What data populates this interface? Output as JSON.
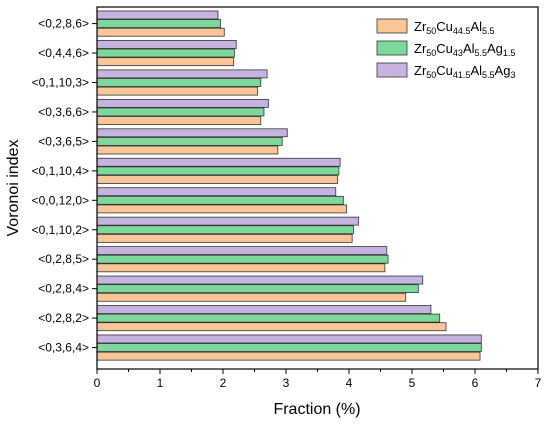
{
  "chart_data": {
    "type": "bar",
    "orientation": "horizontal",
    "xlabel": "Fraction (%)",
    "ylabel": "Voronoi index",
    "xlim": [
      0,
      7
    ],
    "xticks": [
      "0",
      "1",
      "2",
      "3",
      "4",
      "5",
      "6",
      "7"
    ],
    "grid": false,
    "legend_position": "top-right",
    "categories": [
      "<0,2,8,6>",
      "<0,4,4,6>",
      "<0,1,10,3>",
      "<0,3,6,6>",
      "<0,3,6,5>",
      "<0,1,10,4>",
      "<0,0,12,0>",
      "<0,1,10,2>",
      "<0,2,8,5>",
      "<0,2,8,4>",
      "<0,2,8,2>",
      "<0,3,6,4>"
    ],
    "series": [
      {
        "name": "Zr50Cu44.5Al5.5",
        "legend_parts": [
          [
            "Zr",
            false
          ],
          [
            "50",
            true
          ],
          [
            "Cu",
            false
          ],
          [
            "44.5",
            true
          ],
          [
            "Al",
            false
          ],
          [
            "5.5",
            true
          ]
        ],
        "color": "#F8C697",
        "values": [
          2.02,
          2.17,
          2.55,
          2.6,
          2.87,
          3.82,
          3.96,
          4.05,
          4.57,
          4.9,
          5.54,
          6.08
        ]
      },
      {
        "name": "Zr50Cu43Al5.5Ag1.5",
        "legend_parts": [
          [
            "Zr",
            false
          ],
          [
            "50",
            true
          ],
          [
            "Cu",
            false
          ],
          [
            "43",
            true
          ],
          [
            "Al",
            false
          ],
          [
            "5.5",
            true
          ],
          [
            "Ag",
            false
          ],
          [
            "1.5",
            true
          ]
        ],
        "color": "#7FD89B",
        "values": [
          1.96,
          2.18,
          2.6,
          2.65,
          2.94,
          3.84,
          3.91,
          4.07,
          4.62,
          5.1,
          5.44,
          6.1
        ]
      },
      {
        "name": "Zr50Cu41.5Al5.5Ag3",
        "legend_parts": [
          [
            "Zr",
            false
          ],
          [
            "50",
            true
          ],
          [
            "Cu",
            false
          ],
          [
            "41.5",
            true
          ],
          [
            "Al",
            false
          ],
          [
            "5.5",
            true
          ],
          [
            "Ag",
            false
          ],
          [
            "3",
            true
          ]
        ],
        "color": "#C7B3DF",
        "values": [
          1.92,
          2.21,
          2.7,
          2.72,
          3.02,
          3.86,
          3.79,
          4.15,
          4.6,
          5.17,
          5.3,
          6.1
        ]
      }
    ]
  }
}
